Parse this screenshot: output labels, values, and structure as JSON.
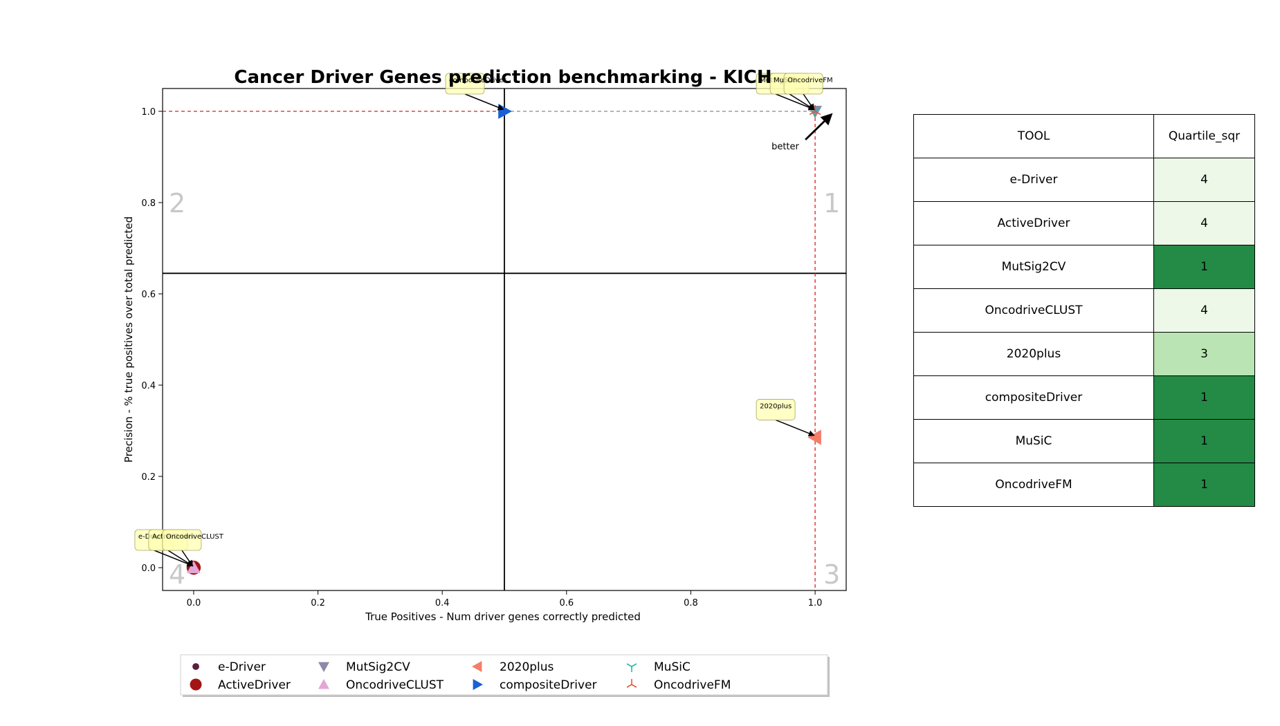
{
  "chart_data": {
    "type": "scatter",
    "title": "Cancer Driver Genes prediction benchmarking - KICH",
    "xlabel": "True Positives - Num driver genes correctly predicted",
    "ylabel": "Precision - % true positives over total predicted",
    "xlim": [
      -0.05,
      1.05
    ],
    "ylim": [
      -0.05,
      1.05
    ],
    "xticks": [
      "0.0",
      "0.2",
      "0.4",
      "0.6",
      "0.8",
      "1.0"
    ],
    "yticks": [
      "0.0",
      "0.2",
      "0.4",
      "0.6",
      "0.8",
      "1.0"
    ],
    "grid": false,
    "quadrant_lines": {
      "x": 0.5,
      "y": 0.645
    },
    "quadrant_labels": [
      "1",
      "2",
      "3",
      "4"
    ],
    "better_label": "better",
    "pareto_front": [
      [
        0,
        1.0
      ],
      [
        0.5,
        1.0
      ],
      [
        1.0,
        1.0
      ]
    ],
    "legend_position": "bottom-center",
    "series": [
      {
        "name": "e-Driver",
        "x": 0.0,
        "y": 0.0,
        "marker": "dot",
        "color": "#5a1f3c"
      },
      {
        "name": "ActiveDriver",
        "x": 0.0,
        "y": 0.0,
        "marker": "circle",
        "color": "#a31515"
      },
      {
        "name": "MutSig2CV",
        "x": 1.0,
        "y": 1.0,
        "marker": "triangle-down",
        "color": "#8c8aa8"
      },
      {
        "name": "OncodriveCLUST",
        "x": 0.0,
        "y": 0.0,
        "marker": "triangle-up",
        "color": "#e4a6d6"
      },
      {
        "name": "2020plus",
        "x": 1.0,
        "y": 0.2857,
        "marker": "triangle-left",
        "color": "#f47e6a"
      },
      {
        "name": "compositeDriver",
        "x": 0.5,
        "y": 1.0,
        "marker": "triangle-right",
        "color": "#1a5fd6"
      },
      {
        "name": "MuSiC",
        "x": 1.0,
        "y": 1.0,
        "marker": "tri-down",
        "color": "#2bb5a8"
      },
      {
        "name": "OncodriveFM",
        "x": 1.0,
        "y": 1.0,
        "marker": "tri-up",
        "color": "#e0553a"
      }
    ]
  },
  "table": {
    "headers": [
      "TOOL",
      "Quartile_sqr"
    ],
    "rows": [
      {
        "tool": "e-Driver",
        "quartile": "4",
        "color": "#edf8e9"
      },
      {
        "tool": "ActiveDriver",
        "quartile": "4",
        "color": "#edf8e9"
      },
      {
        "tool": "MutSig2CV",
        "quartile": "1",
        "color": "#238b45"
      },
      {
        "tool": "OncodriveCLUST",
        "quartile": "4",
        "color": "#edf8e9"
      },
      {
        "tool": "2020plus",
        "quartile": "3",
        "color": "#bae4b3"
      },
      {
        "tool": "compositeDriver",
        "quartile": "1",
        "color": "#238b45"
      },
      {
        "tool": "MuSiC",
        "quartile": "1",
        "color": "#238b45"
      },
      {
        "tool": "OncodriveFM",
        "quartile": "1",
        "color": "#238b45"
      }
    ]
  }
}
